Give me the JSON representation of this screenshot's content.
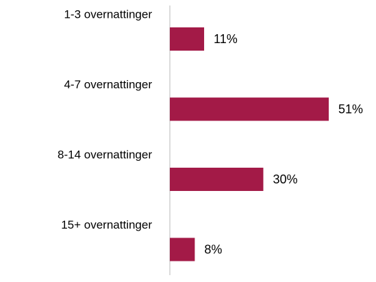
{
  "chart_data": {
    "type": "bar",
    "orientation": "horizontal",
    "categories": [
      "1-3 overnattinger",
      "4-7 overnattinger",
      "8-14 overnattinger",
      "15+ overnattinger"
    ],
    "values": [
      11,
      51,
      30,
      8
    ],
    "value_labels": [
      "11%",
      "51%",
      "30%",
      "8%"
    ],
    "color": "#a31a47"
  }
}
